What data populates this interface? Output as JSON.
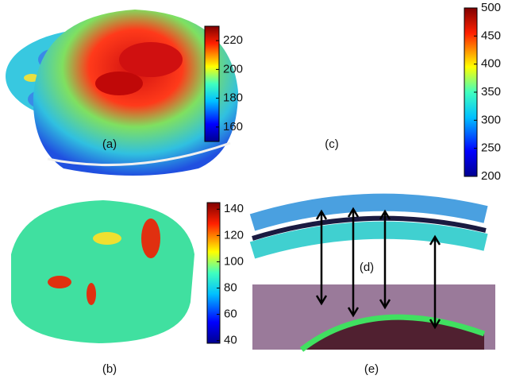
{
  "panels": [
    {
      "label": "(a)",
      "colorbar": {
        "lim": [
          150,
          230
        ],
        "ticks": [
          160,
          180,
          200,
          220
        ]
      }
    },
    {
      "label": "(c)",
      "colorbar": {
        "lim": [
          200,
          500
        ],
        "ticks": [
          200,
          250,
          300,
          350,
          400,
          450,
          500
        ]
      }
    },
    {
      "label": "(b)",
      "colorbar": {
        "lim": [
          38,
          145
        ],
        "ticks": [
          40,
          60,
          80,
          100,
          120,
          140
        ]
      }
    },
    {
      "label": "(e)"
    }
  ],
  "inset_label": "(d)"
}
